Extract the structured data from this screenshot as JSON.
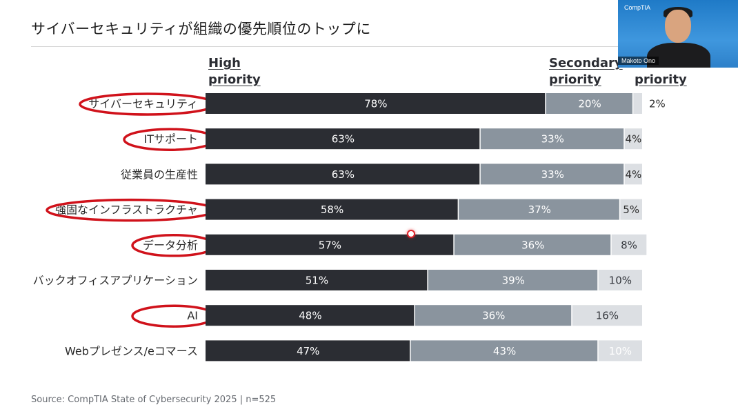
{
  "slide": {
    "title": "サイバーセキュリティが組織の優先順位のトップに",
    "source": "Source: CompTIA State of Cybersecurity 2025 | n=525"
  },
  "webcam": {
    "brand": "CompTIA",
    "name": "Makoto Ono"
  },
  "colors": {
    "high": "#2b2d33",
    "secondary": "#8a949e",
    "low": "#dcdfe3",
    "highlight_ring": "#d0121b"
  },
  "legend": {
    "high": "High\npriority",
    "secondary": "Secondary\npriority",
    "low": "priority"
  },
  "chart_data": {
    "type": "bar",
    "orientation": "horizontal",
    "stacked": true,
    "categories": [
      "サイバーセキュリティ",
      "ITサポート",
      "従業員の生産性",
      "強固なインフラストラクチャ",
      "データ分析",
      "バックオフィスアプリケーション",
      "AI",
      "Webプレゼンス/eコマース"
    ],
    "highlighted": [
      true,
      true,
      false,
      true,
      true,
      false,
      true,
      false
    ],
    "series": [
      {
        "values": [
          78,
          63,
          63,
          58,
          57,
          51,
          48,
          47
        ]
      },
      {
        "values": [
          20,
          33,
          33,
          37,
          36,
          39,
          36,
          43
        ]
      },
      {
        "values": [
          2,
          4,
          4,
          5,
          8,
          10,
          16,
          10
        ]
      }
    ],
    "labels": [
      [
        "78%",
        "20%",
        "2%"
      ],
      [
        "63%",
        "33%",
        "4%"
      ],
      [
        "63%",
        "33%",
        "4%"
      ],
      [
        "58%",
        "37%",
        "5%"
      ],
      [
        "57%",
        "36%",
        "8%"
      ],
      [
        "51%",
        "39%",
        "10%"
      ],
      [
        "48%",
        "36%",
        "16%"
      ],
      [
        "47%",
        "43%",
        "10%"
      ]
    ],
    "xlim": [
      0,
      100
    ],
    "grid": false,
    "legend_position": "top"
  }
}
